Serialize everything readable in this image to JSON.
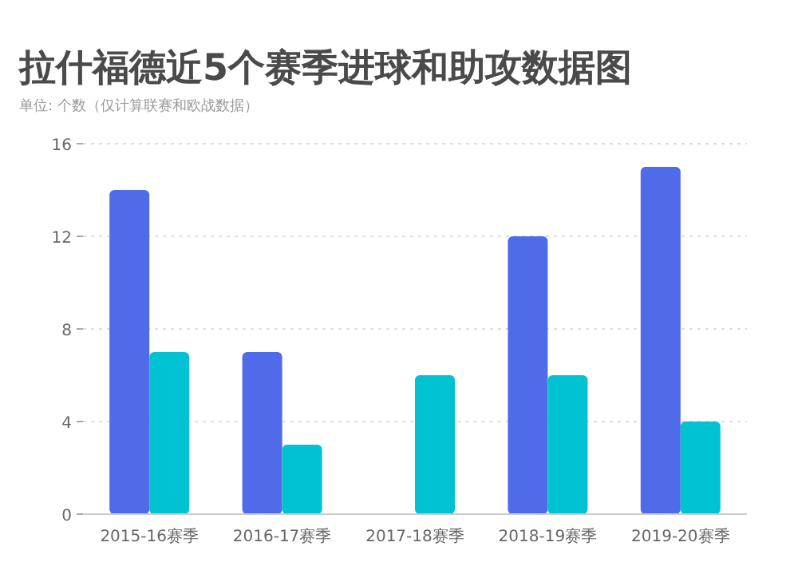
{
  "chart_data": {
    "type": "bar",
    "title": "拉什福德近5个赛季进球和助攻数据图",
    "subtitle": "单位: 个数（仅计算联赛和欧战数据）",
    "categories": [
      "2015-16赛季",
      "2016-17赛季",
      "2017-18赛季",
      "2018-19赛季",
      "2019-20赛季"
    ],
    "series": [
      {
        "color": "#4f6bea",
        "values": [
          14,
          7,
          null,
          12,
          15
        ]
      },
      {
        "color": "#00c2d2",
        "values": [
          7,
          3,
          6,
          6,
          4
        ]
      }
    ],
    "ylim": [
      0,
      16
    ],
    "yticks": [
      0,
      4,
      8,
      12,
      16
    ],
    "grid": "y"
  }
}
